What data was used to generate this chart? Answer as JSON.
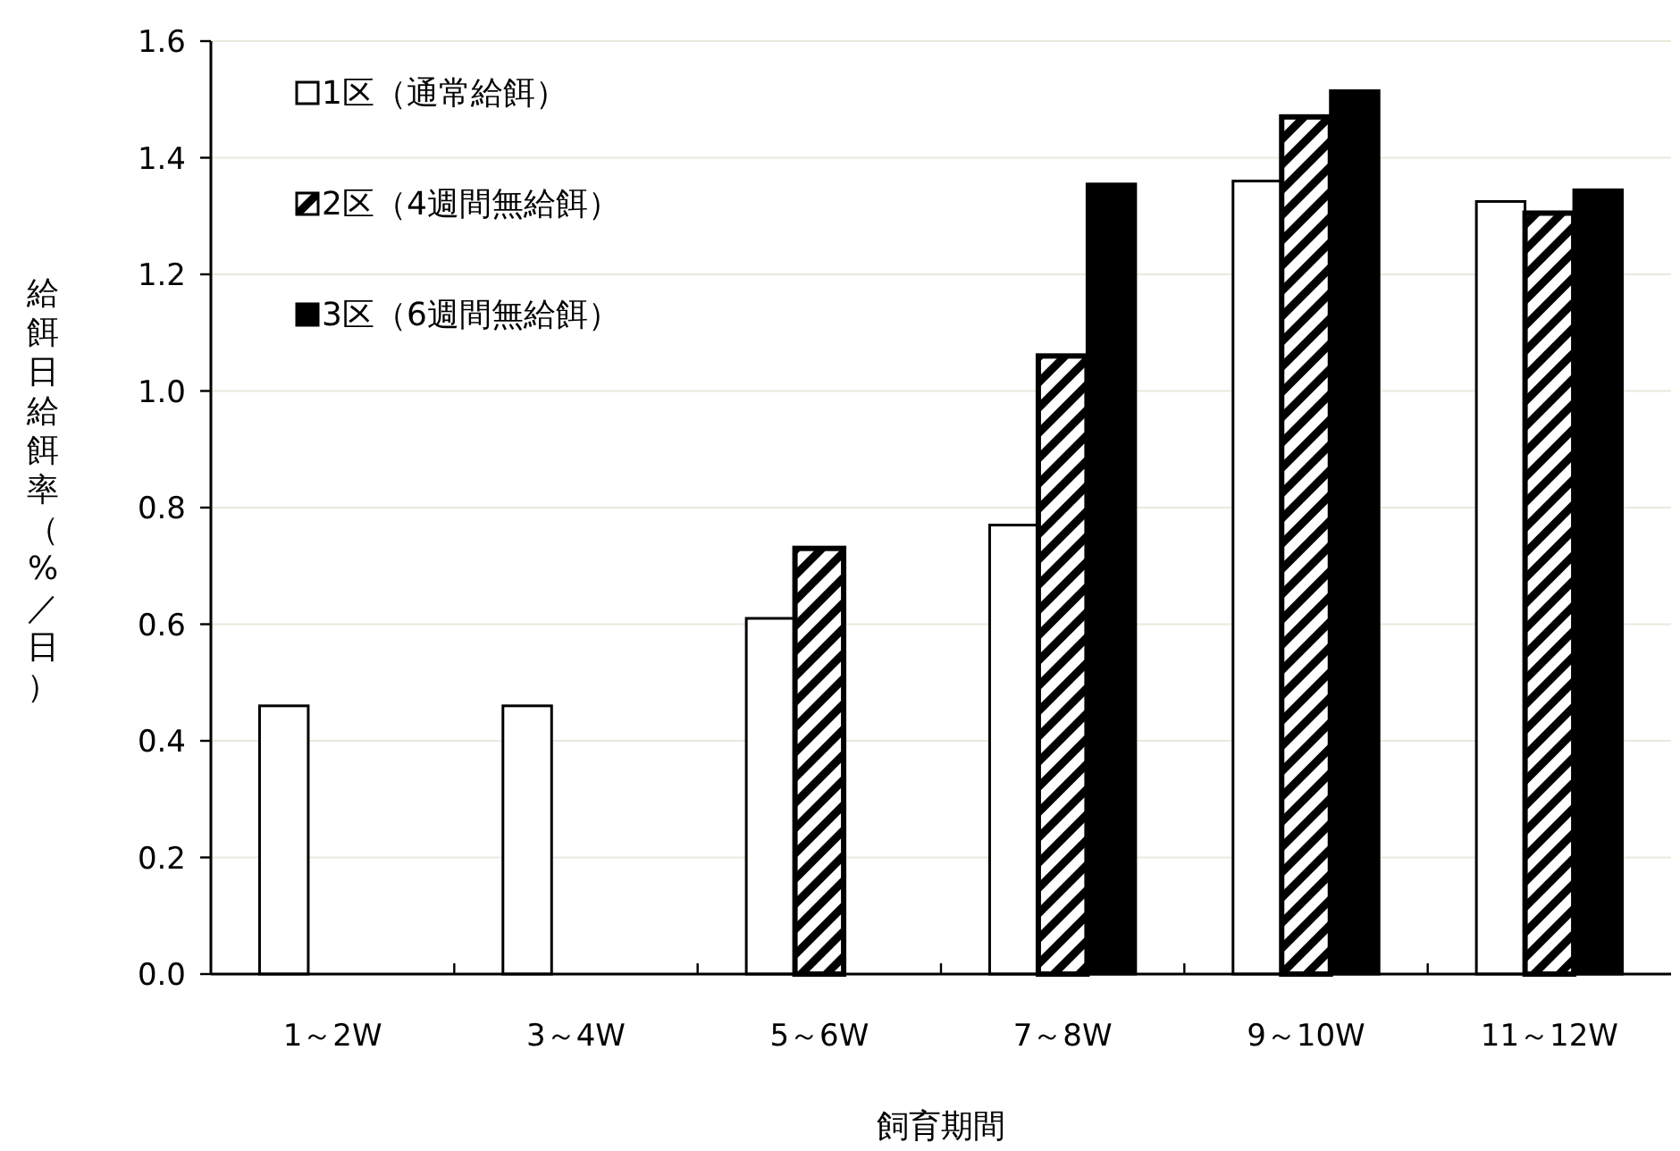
{
  "chart_data": {
    "type": "bar",
    "xlabel": "飼育期間",
    "ylabel": "給餌日給餌率（%／日）",
    "categories": [
      "1～2W",
      "3～4W",
      "5～6W",
      "7～8W",
      "9～10W",
      "11～12W"
    ],
    "series": [
      {
        "name": "1区（通常給餌）",
        "color": "#ffffff",
        "values": [
          0.46,
          0.46,
          0.61,
          0.77,
          1.36,
          1.325
        ]
      },
      {
        "name": "2区（4週間無給餌）",
        "color": "#000000",
        "values": [
          null,
          null,
          0.73,
          1.06,
          1.47,
          1.305
        ]
      },
      {
        "name": "3区（6週間無給餌）",
        "color": "#000000",
        "values": [
          null,
          null,
          null,
          1.355,
          1.515,
          1.345
        ]
      }
    ],
    "ylim": [
      0,
      1.6
    ],
    "yticks": [
      {
        "value": 0,
        "label": "0.0"
      },
      {
        "value": 0.2,
        "label": "0.2"
      },
      {
        "value": 0.4,
        "label": "0.4"
      },
      {
        "value": 0.6,
        "label": "0.6"
      },
      {
        "value": 0.8,
        "label": "0.8"
      },
      {
        "value": 1.0,
        "label": "1.0"
      },
      {
        "value": 1.2,
        "label": "1.2"
      },
      {
        "value": 1.4,
        "label": "1.4"
      },
      {
        "value": 1.6,
        "label": "1.6"
      }
    ],
    "grid": "y",
    "legend": "top left"
  }
}
